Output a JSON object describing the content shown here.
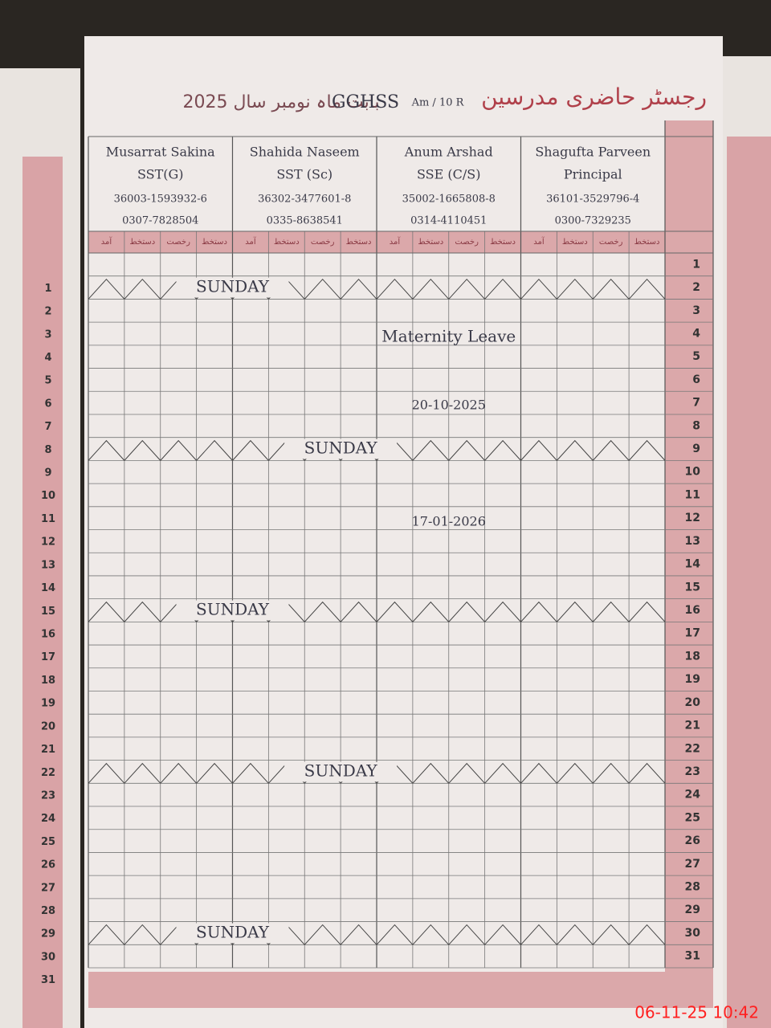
{
  "header": {
    "title": "رجسٹر حاضری مدرسین",
    "period": "بابت ماہ نومبر سال 2025",
    "school": "GGHSS",
    "class": "Am / 10 R"
  },
  "teachers": [
    {
      "name": "Musarrat Sakina",
      "designation": "SST(G)",
      "cnic": "36003-1593932-6",
      "phone": "0307-7828504"
    },
    {
      "name": "Shahida Naseem",
      "designation": "SST (Sc)",
      "cnic": "36302-3477601-8",
      "phone": "0335-8638541"
    },
    {
      "name": "Anum Arshad",
      "designation": "SSE (C/S)",
      "cnic": "35002-1665808-8",
      "phone": "0314-4110451"
    },
    {
      "name": "Shagufta Parveen",
      "designation": "Principal",
      "cnic": "36101-3529796-4",
      "phone": "0300-7329235"
    }
  ],
  "subheaders": [
    "آمد",
    "دستخط",
    "رخصت",
    "دستخط"
  ],
  "rows": [
    {
      "day": "1"
    },
    {
      "day": "2",
      "note": "SUNDAY"
    },
    {
      "day": "3"
    },
    {
      "day": "4"
    },
    {
      "day": "5"
    },
    {
      "day": "6"
    },
    {
      "day": "7"
    },
    {
      "day": "8"
    },
    {
      "day": "9",
      "note": "SUNDAY"
    },
    {
      "day": "10"
    },
    {
      "day": "11"
    },
    {
      "day": "12"
    },
    {
      "day": "13"
    },
    {
      "day": "14"
    },
    {
      "day": "15"
    },
    {
      "day": "16",
      "note": "SUNDAY"
    },
    {
      "day": "17"
    },
    {
      "day": "18"
    },
    {
      "day": "19"
    },
    {
      "day": "20"
    },
    {
      "day": "21"
    },
    {
      "day": "22"
    },
    {
      "day": "23",
      "note": "SUNDAY"
    },
    {
      "day": "24"
    },
    {
      "day": "25"
    },
    {
      "day": "26"
    },
    {
      "day": "27"
    },
    {
      "day": "28"
    },
    {
      "day": "29"
    },
    {
      "day": "30",
      "note": "SUNDAY"
    },
    {
      "day": "31"
    }
  ],
  "annotations": {
    "leave": "Maternity Leave",
    "leave_date": "20-10-2025",
    "return_date": "17-01-2026"
  },
  "timestamp": "06-11-25  10:42"
}
